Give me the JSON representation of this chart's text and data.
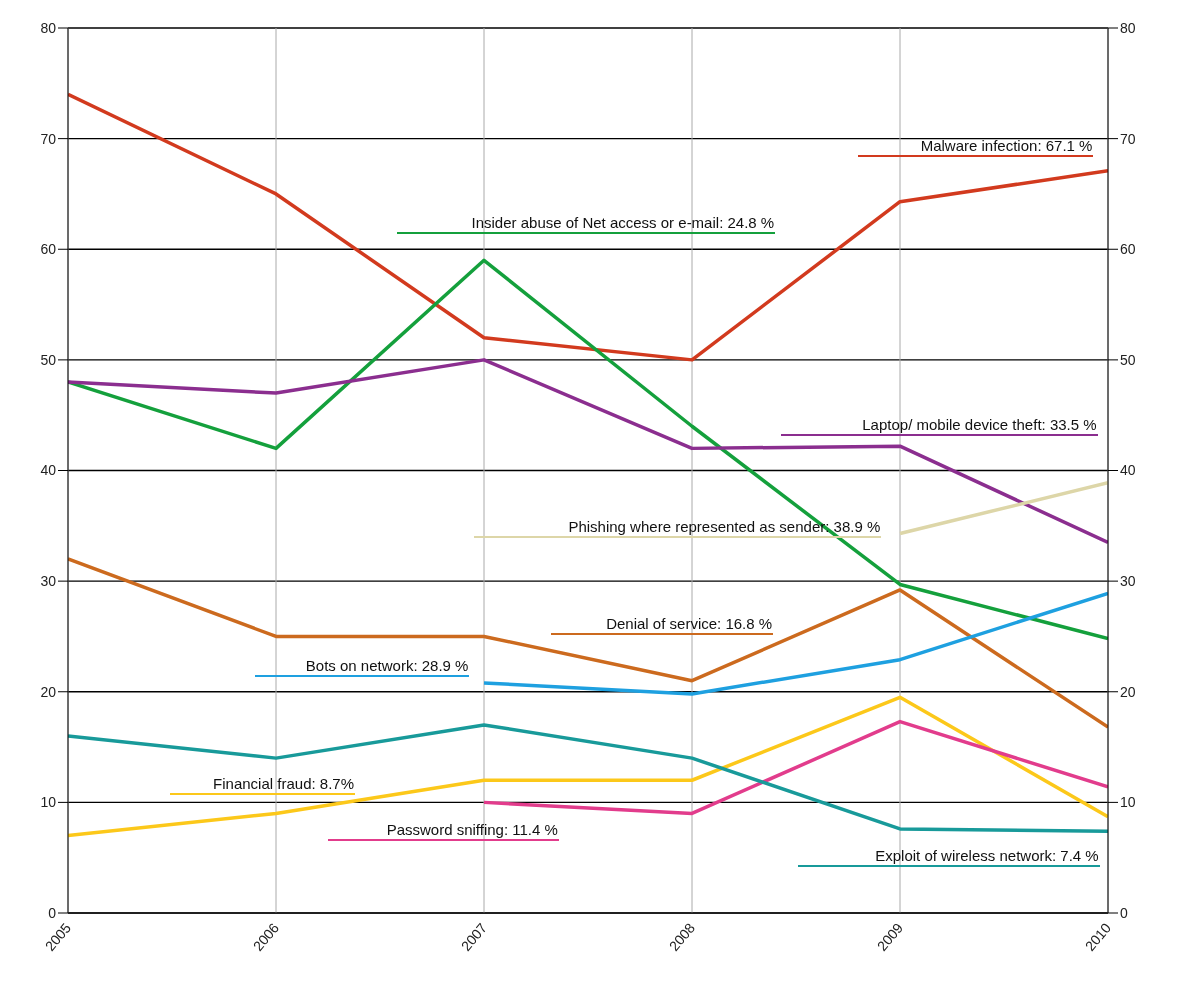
{
  "chart_data": {
    "type": "line",
    "x": [
      2005,
      2006,
      2007,
      2008,
      2009,
      2010
    ],
    "xlim": [
      2005,
      2010
    ],
    "xticks": [
      2005,
      2006,
      2007,
      2008,
      2009,
      2010
    ],
    "ylim": [
      0,
      80
    ],
    "yticks": [
      0,
      10,
      20,
      30,
      40,
      50,
      60,
      70,
      80
    ],
    "y2lim": [
      0,
      80
    ],
    "y2ticks": [
      0,
      10,
      20,
      30,
      40,
      50,
      60,
      70,
      80
    ],
    "grid": true,
    "series": [
      {
        "name": "Malware infection:  67.1 %",
        "color": "#d23a1e",
        "values": [
          74,
          65,
          52,
          50,
          64.3,
          67.1
        ]
      },
      {
        "name": "Insider abuse of Net access or e-mail:  24.8 %",
        "color": "#14a03c",
        "values": [
          48,
          42,
          59,
          44,
          29.7,
          24.8
        ]
      },
      {
        "name": "Laptop/ mobile device theft:  33.5 %",
        "color": "#8b2e8f",
        "values": [
          48,
          47,
          50,
          42,
          42.2,
          33.5
        ]
      },
      {
        "name": "Phishing where represented as sender: 38.9 %",
        "color": "#ddd6a8",
        "values": [
          null,
          null,
          null,
          null,
          34.3,
          38.9
        ]
      },
      {
        "name": "Denial of service:  16.8 %",
        "color": "#cc6a1e",
        "values": [
          32,
          25,
          25,
          21,
          29.2,
          16.8
        ]
      },
      {
        "name": "Bots on network:  28.9 %",
        "color": "#1ea0e0",
        "values": [
          null,
          null,
          20.8,
          19.8,
          22.9,
          28.9
        ]
      },
      {
        "name": "Financial fraud: 8.7%",
        "color": "#fcc81a",
        "values": [
          7,
          9,
          12,
          12,
          19.5,
          8.7
        ]
      },
      {
        "name": "Password sniffing: 11.4 %",
        "color": "#e23c8c",
        "values": [
          null,
          null,
          10,
          9,
          17.3,
          11.4
        ]
      },
      {
        "name": "Exploit of wireless network:  7.4 %",
        "color": "#189a9a",
        "values": [
          16,
          14,
          17,
          14,
          7.6,
          7.4
        ]
      }
    ]
  }
}
